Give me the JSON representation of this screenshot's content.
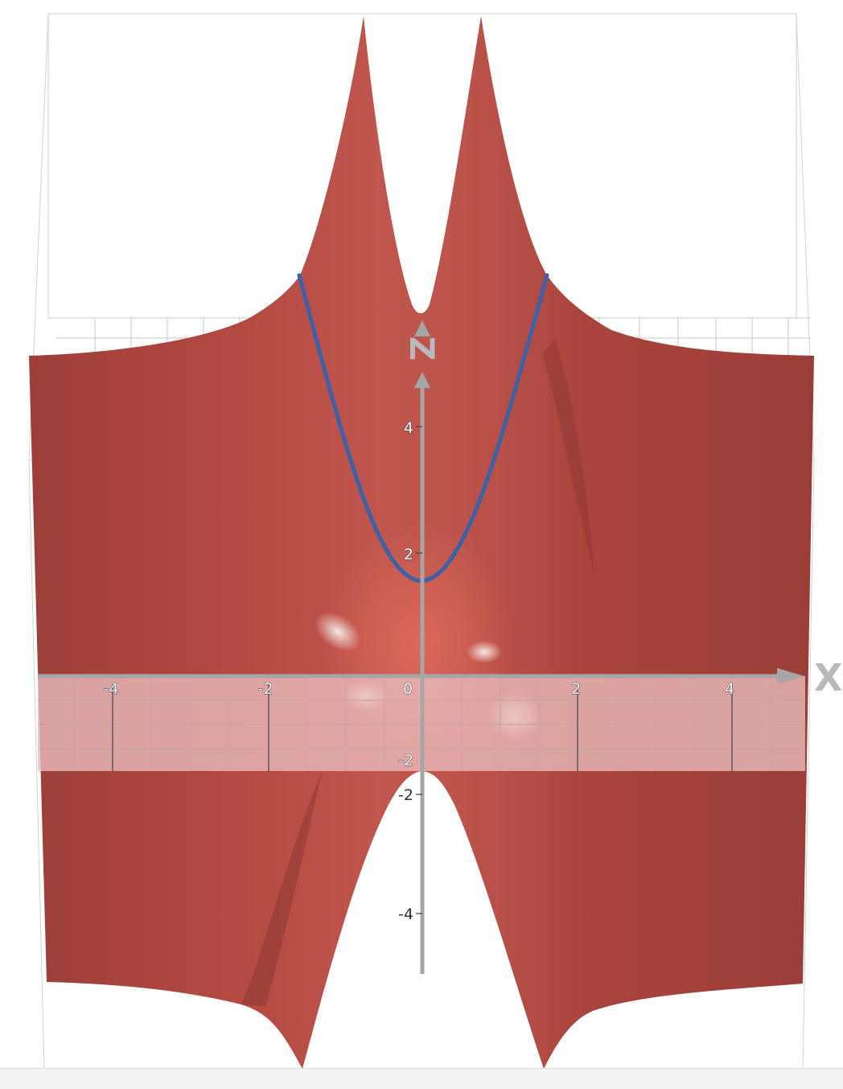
{
  "scene": {
    "axes": {
      "x_name": "X",
      "z_name": "Z"
    },
    "ticks": {
      "x": [
        "-4",
        "-2",
        "0",
        "2",
        "4"
      ],
      "z": [
        "4",
        "2",
        "-2",
        "-4"
      ],
      "plane_z": "-2"
    },
    "colors": {
      "surface": "#a9433d",
      "surface_highlight": "#d96a5e",
      "curve": "#3a62a8",
      "plane": "rgba(235,190,190,0.78)",
      "axis": "#a6a6a6"
    }
  }
}
